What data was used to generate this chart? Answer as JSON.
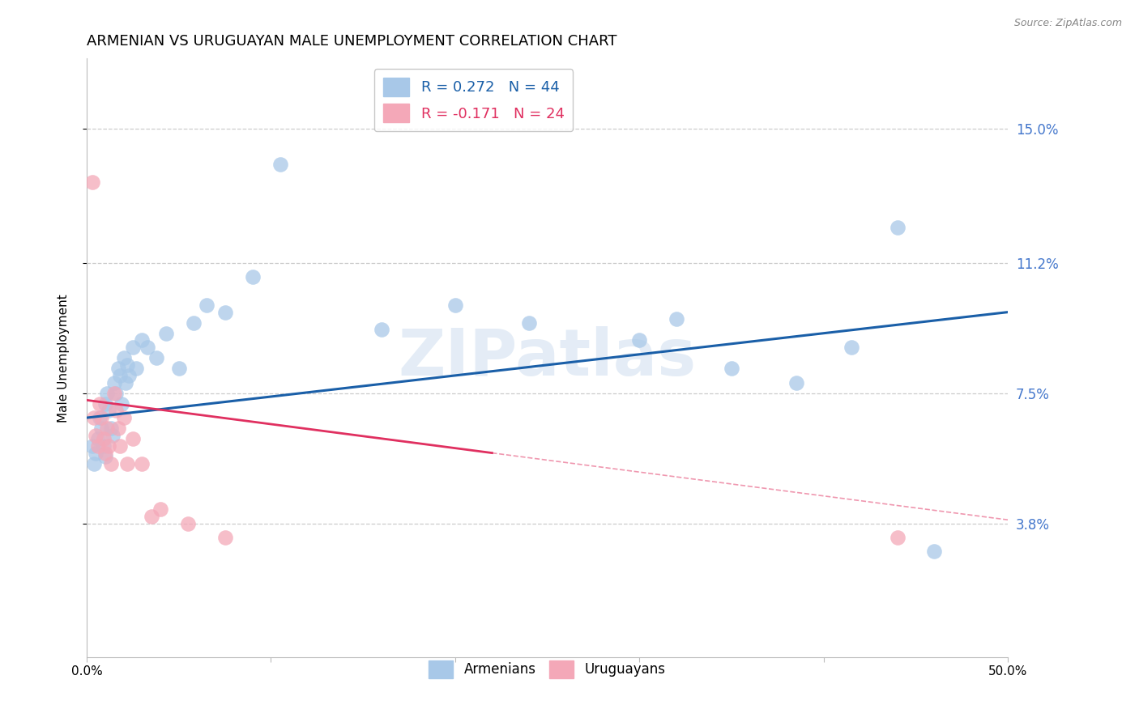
{
  "title": "ARMENIAN VS URUGUAYAN MALE UNEMPLOYMENT CORRELATION CHART",
  "source": "Source: ZipAtlas.com",
  "ylabel": "Male Unemployment",
  "watermark": "ZIPatlas",
  "xlim": [
    0.0,
    0.5
  ],
  "ylim": [
    0.0,
    0.17
  ],
  "yticks": [
    0.038,
    0.075,
    0.112,
    0.15
  ],
  "ytick_labels": [
    "3.8%",
    "7.5%",
    "11.2%",
    "15.0%"
  ],
  "armenian_R": 0.272,
  "armenian_N": 44,
  "uruguayan_R": -0.171,
  "uruguayan_N": 24,
  "armenian_color": "#a8c8e8",
  "uruguayan_color": "#f4a8b8",
  "armenian_line_color": "#1a5fa8",
  "uruguayan_line_color": "#e03060",
  "armenian_points_x": [
    0.003,
    0.004,
    0.005,
    0.006,
    0.007,
    0.008,
    0.009,
    0.01,
    0.01,
    0.011,
    0.012,
    0.013,
    0.014,
    0.015,
    0.016,
    0.017,
    0.018,
    0.019,
    0.02,
    0.021,
    0.022,
    0.023,
    0.025,
    0.027,
    0.03,
    0.033,
    0.038,
    0.043,
    0.05,
    0.058,
    0.065,
    0.075,
    0.09,
    0.105,
    0.16,
    0.2,
    0.24,
    0.3,
    0.32,
    0.35,
    0.385,
    0.415,
    0.44,
    0.46
  ],
  "armenian_points_y": [
    0.06,
    0.055,
    0.058,
    0.062,
    0.068,
    0.065,
    0.06,
    0.057,
    0.072,
    0.075,
    0.07,
    0.065,
    0.063,
    0.078,
    0.075,
    0.082,
    0.08,
    0.072,
    0.085,
    0.078,
    0.083,
    0.08,
    0.088,
    0.082,
    0.09,
    0.088,
    0.085,
    0.092,
    0.082,
    0.095,
    0.1,
    0.098,
    0.108,
    0.14,
    0.093,
    0.1,
    0.095,
    0.09,
    0.096,
    0.082,
    0.078,
    0.088,
    0.122,
    0.03
  ],
  "uruguayan_points_x": [
    0.003,
    0.004,
    0.005,
    0.006,
    0.007,
    0.008,
    0.009,
    0.01,
    0.011,
    0.012,
    0.013,
    0.015,
    0.016,
    0.017,
    0.018,
    0.02,
    0.022,
    0.025,
    0.03,
    0.035,
    0.04,
    0.055,
    0.075,
    0.44
  ],
  "uruguayan_points_y": [
    0.135,
    0.068,
    0.063,
    0.06,
    0.072,
    0.068,
    0.062,
    0.058,
    0.065,
    0.06,
    0.055,
    0.075,
    0.07,
    0.065,
    0.06,
    0.068,
    0.055,
    0.062,
    0.055,
    0.04,
    0.042,
    0.038,
    0.034,
    0.034
  ],
  "arm_line_x0": 0.0,
  "arm_line_y0": 0.068,
  "arm_line_x1": 0.5,
  "arm_line_y1": 0.098,
  "uru_line_solid_x0": 0.0,
  "uru_line_solid_y0": 0.073,
  "uru_line_solid_x1": 0.22,
  "uru_line_solid_y1": 0.058,
  "uru_line_dash_x0": 0.22,
  "uru_line_dash_y0": 0.058,
  "uru_line_dash_x1": 0.5,
  "uru_line_dash_y1": 0.039,
  "bg_color": "#ffffff",
  "grid_color": "#cccccc",
  "axis_color": "#bbbbbb",
  "right_label_color": "#4477cc",
  "title_fontsize": 13,
  "label_fontsize": 11,
  "tick_fontsize": 11,
  "legend_fontsize": 13
}
